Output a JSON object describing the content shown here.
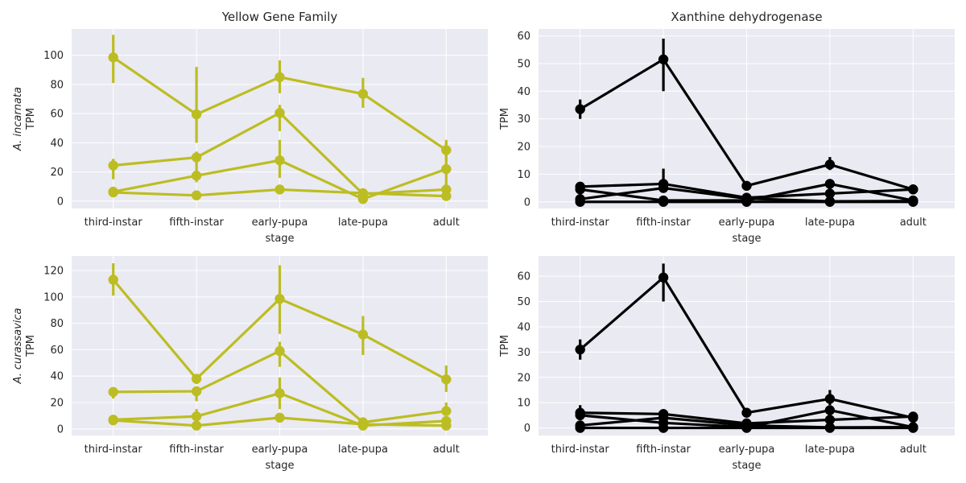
{
  "colors": {
    "yellow": "#bcbd22",
    "black": "#000000",
    "panel_bg": "#eaeaf2",
    "grid": "#ffffff"
  },
  "chart_data": [
    {
      "type": "line",
      "title": "Yellow Gene Family",
      "ylabel_species": "A. incarnata",
      "ylabel": "TPM",
      "xlabel": "stage",
      "categories": [
        "third-instar",
        "fifth-instar",
        "early-pupa",
        "late-pupa",
        "adult"
      ],
      "ylim": [
        -5,
        118
      ],
      "yticks": [
        0,
        20,
        40,
        60,
        80,
        100
      ],
      "grid": true,
      "color": "#bcbd22",
      "series": [
        {
          "values": [
            98.5,
            59.5,
            85,
            73.5,
            35
          ],
          "err_low": [
            81,
            40,
            74,
            64,
            28
          ],
          "err_high": [
            114,
            92,
            96.5,
            84.5,
            42
          ]
        },
        {
          "values": [
            24.5,
            30,
            60.5,
            5,
            8
          ],
          "err_low": [
            15,
            18,
            48,
            4,
            5
          ],
          "err_high": [
            29,
            34,
            66,
            6,
            10
          ]
        },
        {
          "values": [
            6.5,
            17.5,
            28,
            1.5,
            22
          ],
          "err_low": [
            5,
            13,
            16,
            1,
            5
          ],
          "err_high": [
            8,
            21,
            42,
            2,
            40
          ]
        },
        {
          "values": [
            6,
            4,
            8,
            5.5,
            3.5
          ],
          "err_low": [
            5,
            3,
            7,
            4,
            2
          ],
          "err_high": [
            7,
            5,
            9,
            7,
            5
          ]
        }
      ]
    },
    {
      "type": "line",
      "title": "Xanthine dehydrogenase",
      "ylabel": "TPM",
      "xlabel": "stage",
      "categories": [
        "third-instar",
        "fifth-instar",
        "early-pupa",
        "late-pupa",
        "adult"
      ],
      "ylim": [
        -2.4,
        62.5
      ],
      "yticks": [
        0,
        10,
        20,
        30,
        40,
        50,
        60
      ],
      "grid": true,
      "color": "#000000",
      "series": [
        {
          "values": [
            33.5,
            51.5,
            5.8,
            13.5,
            4.5
          ],
          "err_low": [
            30,
            40,
            5.3,
            11.5,
            3.8
          ],
          "err_high": [
            37,
            59,
            6.3,
            16.2,
            6
          ]
        },
        {
          "values": [
            5.5,
            6.5,
            1.5,
            3,
            4.5
          ],
          "err_low": [
            4.5,
            4,
            1.2,
            2.5,
            3.5
          ],
          "err_high": [
            6.5,
            12,
            1.8,
            3.5,
            5.5
          ]
        },
        {
          "values": [
            4.5,
            0.5,
            0.5,
            6.5,
            0.5
          ],
          "err_low": [
            4,
            0.3,
            0.3,
            5.5,
            0.3
          ],
          "err_high": [
            5,
            0.7,
            0.7,
            7.5,
            0.7
          ]
        },
        {
          "values": [
            1,
            5,
            1.2,
            0.2,
            0.3
          ],
          "err_low": [
            0.5,
            4,
            1,
            0.1,
            0.2
          ],
          "err_high": [
            1.5,
            6,
            1.4,
            0.3,
            0.4
          ]
        },
        {
          "values": [
            0,
            0,
            0,
            0,
            0
          ],
          "err_low": [
            0,
            0,
            0,
            0,
            0
          ],
          "err_high": [
            0,
            0,
            0,
            0,
            0
          ]
        }
      ]
    },
    {
      "type": "line",
      "title": "",
      "ylabel_species": "A. curassavica",
      "ylabel": "TPM",
      "xlabel": "stage",
      "categories": [
        "third-instar",
        "fifth-instar",
        "early-pupa",
        "late-pupa",
        "adult"
      ],
      "ylim": [
        -5,
        131
      ],
      "yticks": [
        0,
        20,
        40,
        60,
        80,
        100,
        120
      ],
      "grid": true,
      "color": "#bcbd22",
      "series": [
        {
          "values": [
            113,
            38,
            98.5,
            71.5,
            37.5
          ],
          "err_low": [
            101,
            34,
            72,
            56,
            28
          ],
          "err_high": [
            125.5,
            41,
            124,
            85.5,
            48
          ]
        },
        {
          "values": [
            28,
            28.5,
            59,
            5,
            13.5
          ],
          "err_low": [
            23,
            21,
            47,
            4,
            11
          ],
          "err_high": [
            30,
            30,
            66,
            6,
            20
          ]
        },
        {
          "values": [
            7,
            9.5,
            27,
            2.5,
            6
          ],
          "err_low": [
            5,
            6,
            15,
            2,
            4
          ],
          "err_high": [
            9,
            15,
            39,
            3,
            8
          ]
        },
        {
          "values": [
            6.5,
            2.5,
            8.5,
            3.5,
            2.5
          ],
          "err_low": [
            5,
            2,
            7,
            3,
            2
          ],
          "err_high": [
            8,
            3,
            10,
            4,
            3
          ]
        }
      ]
    },
    {
      "type": "line",
      "title": "",
      "ylabel": "TPM",
      "xlabel": "stage",
      "categories": [
        "third-instar",
        "fifth-instar",
        "early-pupa",
        "late-pupa",
        "adult"
      ],
      "ylim": [
        -3,
        68
      ],
      "yticks": [
        0,
        10,
        20,
        30,
        40,
        50,
        60
      ],
      "grid": true,
      "color": "#000000",
      "series": [
        {
          "values": [
            31,
            59.5,
            6,
            11.5,
            4
          ],
          "err_low": [
            27,
            50,
            5.5,
            9,
            3.5
          ],
          "err_high": [
            35,
            65,
            6.5,
            15,
            4.5
          ]
        },
        {
          "values": [
            6,
            5.5,
            1.8,
            3.2,
            4.5
          ],
          "err_low": [
            4,
            4,
            1.5,
            2.5,
            3.5
          ],
          "err_high": [
            9,
            7,
            2.2,
            4,
            5.5
          ]
        },
        {
          "values": [
            5,
            2,
            0.3,
            7,
            0.3
          ],
          "err_low": [
            4,
            1.5,
            0.2,
            6,
            0.2
          ],
          "err_high": [
            6,
            2.5,
            0.4,
            8,
            0.4
          ]
        },
        {
          "values": [
            1,
            4,
            1,
            0.2,
            0.3
          ],
          "err_low": [
            0.5,
            3,
            0.8,
            0.1,
            0.2
          ],
          "err_high": [
            1.5,
            5,
            1.2,
            0.3,
            0.4
          ]
        },
        {
          "values": [
            0,
            0,
            0,
            0,
            0
          ],
          "err_low": [
            0,
            0,
            0,
            0,
            0
          ],
          "err_high": [
            0,
            0,
            0,
            0,
            0
          ]
        }
      ]
    }
  ]
}
